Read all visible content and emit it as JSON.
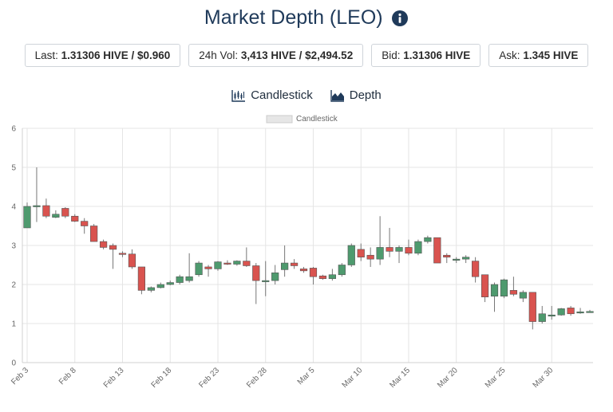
{
  "header": {
    "title": "Market Depth (LEO)",
    "info_icon": "info-circle-icon"
  },
  "stats": [
    {
      "label": "Last:",
      "value": "1.31306 HIVE / $0.960"
    },
    {
      "label": "24h Vol:",
      "value": "3,413 HIVE / $2,494.52"
    },
    {
      "label": "Bid:",
      "value": "1.31306 HIVE"
    },
    {
      "label": "Ask:",
      "value": "1.345 HIVE"
    }
  ],
  "tabs": [
    {
      "label": "Candlestick",
      "icon": "candlestick-chart-icon"
    },
    {
      "label": "Depth",
      "icon": "area-chart-icon"
    }
  ],
  "colors": {
    "up": "#4e9a6e",
    "down": "#d9534f",
    "accent": "#1f3a5a"
  },
  "chart_data": {
    "type": "candlestick",
    "legend": [
      "Candlestick"
    ],
    "legend_position": "top-center",
    "ylim": [
      0,
      6
    ],
    "y_ticks": [
      0,
      1,
      2,
      3,
      4,
      5,
      6
    ],
    "x_ticks": [
      "Feb 3",
      "Feb 8",
      "Feb 13",
      "Feb 18",
      "Feb 23",
      "Feb 28",
      "Mar 5",
      "Mar 10",
      "Mar 15",
      "Mar 20",
      "Mar 25",
      "Mar 30"
    ],
    "grid": true,
    "candles": [
      {
        "date": "Feb 3",
        "open": 3.45,
        "close": 4.0,
        "high": 4.1,
        "low": 3.45
      },
      {
        "date": "Feb 4",
        "open": 4.0,
        "close": 4.02,
        "high": 5.0,
        "low": 3.6
      },
      {
        "date": "Feb 5",
        "open": 4.02,
        "close": 3.75,
        "high": 4.2,
        "low": 3.7
      },
      {
        "date": "Feb 6",
        "open": 3.72,
        "close": 3.8,
        "high": 3.9,
        "low": 3.7
      },
      {
        "date": "Feb 7",
        "open": 3.95,
        "close": 3.75,
        "high": 3.98,
        "low": 3.7
      },
      {
        "date": "Feb 8",
        "open": 3.75,
        "close": 3.62,
        "high": 3.8,
        "low": 3.6
      },
      {
        "date": "Feb 9",
        "open": 3.62,
        "close": 3.5,
        "high": 3.7,
        "low": 3.3
      },
      {
        "date": "Feb 10",
        "open": 3.5,
        "close": 3.1,
        "high": 3.55,
        "low": 3.1
      },
      {
        "date": "Feb 11",
        "open": 3.1,
        "close": 2.95,
        "high": 3.15,
        "low": 2.9
      },
      {
        "date": "Feb 12",
        "open": 3.0,
        "close": 2.9,
        "high": 3.05,
        "low": 2.4
      },
      {
        "date": "Feb 13",
        "open": 2.8,
        "close": 2.78,
        "high": 2.85,
        "low": 2.7
      },
      {
        "date": "Feb 14",
        "open": 2.78,
        "close": 2.45,
        "high": 2.9,
        "low": 2.4
      },
      {
        "date": "Feb 15",
        "open": 2.45,
        "close": 1.85,
        "high": 2.45,
        "low": 1.75
      },
      {
        "date": "Feb 16",
        "open": 1.85,
        "close": 1.92,
        "high": 1.95,
        "low": 1.8
      },
      {
        "date": "Feb 17",
        "open": 1.92,
        "close": 2.0,
        "high": 2.05,
        "low": 1.9
      },
      {
        "date": "Feb 18",
        "open": 2.0,
        "close": 2.05,
        "high": 2.1,
        "low": 1.98
      },
      {
        "date": "Feb 19",
        "open": 2.05,
        "close": 2.2,
        "high": 2.25,
        "low": 2.0
      },
      {
        "date": "Feb 20",
        "open": 2.1,
        "close": 2.2,
        "high": 2.8,
        "low": 2.05
      },
      {
        "date": "Feb 21",
        "open": 2.25,
        "close": 2.55,
        "high": 2.6,
        "low": 2.2
      },
      {
        "date": "Feb 22",
        "open": 2.45,
        "close": 2.4,
        "high": 2.5,
        "low": 2.2
      },
      {
        "date": "Feb 23",
        "open": 2.4,
        "close": 2.58,
        "high": 2.6,
        "low": 2.35
      },
      {
        "date": "Feb 24",
        "open": 2.55,
        "close": 2.52,
        "high": 2.62,
        "low": 2.5
      },
      {
        "date": "Feb 25",
        "open": 2.52,
        "close": 2.6,
        "high": 2.62,
        "low": 2.48
      },
      {
        "date": "Feb 26",
        "open": 2.6,
        "close": 2.48,
        "high": 2.95,
        "low": 2.45
      },
      {
        "date": "Feb 27",
        "open": 2.48,
        "close": 2.1,
        "high": 2.55,
        "low": 1.5
      },
      {
        "date": "Feb 28",
        "open": 2.1,
        "close": 2.1,
        "high": 2.6,
        "low": 1.7
      },
      {
        "date": "Mar 1",
        "open": 2.1,
        "close": 2.3,
        "high": 2.5,
        "low": 2.0
      },
      {
        "date": "Mar 2",
        "open": 2.38,
        "close": 2.55,
        "high": 3.0,
        "low": 2.2
      },
      {
        "date": "Mar 3",
        "open": 2.55,
        "close": 2.48,
        "high": 2.65,
        "low": 2.4
      },
      {
        "date": "Mar 4",
        "open": 2.4,
        "close": 2.35,
        "high": 2.45,
        "low": 2.3
      },
      {
        "date": "Mar 5",
        "open": 2.42,
        "close": 2.2,
        "high": 2.45,
        "low": 2.0
      },
      {
        "date": "Mar 6",
        "open": 2.22,
        "close": 2.15,
        "high": 2.25,
        "low": 2.12
      },
      {
        "date": "Mar 7",
        "open": 2.15,
        "close": 2.25,
        "high": 2.4,
        "low": 2.1
      },
      {
        "date": "Mar 8",
        "open": 2.25,
        "close": 2.5,
        "high": 2.55,
        "low": 2.2
      },
      {
        "date": "Mar 9",
        "open": 2.5,
        "close": 3.0,
        "high": 3.05,
        "low": 2.45
      },
      {
        "date": "Mar 10",
        "open": 2.9,
        "close": 2.7,
        "high": 3.05,
        "low": 2.6
      },
      {
        "date": "Mar 11",
        "open": 2.75,
        "close": 2.65,
        "high": 2.95,
        "low": 2.45
      },
      {
        "date": "Mar 12",
        "open": 2.65,
        "close": 2.95,
        "high": 3.75,
        "low": 2.5
      },
      {
        "date": "Mar 13",
        "open": 2.95,
        "close": 2.85,
        "high": 3.45,
        "low": 2.7
      },
      {
        "date": "Mar 14",
        "open": 2.85,
        "close": 2.95,
        "high": 3.0,
        "low": 2.55
      },
      {
        "date": "Mar 15",
        "open": 2.95,
        "close": 2.8,
        "high": 3.15,
        "low": 2.75
      },
      {
        "date": "Mar 16",
        "open": 2.8,
        "close": 3.1,
        "high": 3.15,
        "low": 2.75
      },
      {
        "date": "Mar 17",
        "open": 3.1,
        "close": 3.2,
        "high": 3.25,
        "low": 3.05
      },
      {
        "date": "Mar 18",
        "open": 3.2,
        "close": 2.55,
        "high": 3.2,
        "low": 2.55
      },
      {
        "date": "Mar 19",
        "open": 2.75,
        "close": 2.7,
        "high": 2.8,
        "low": 2.55
      },
      {
        "date": "Mar 20",
        "open": 2.62,
        "close": 2.65,
        "high": 2.7,
        "low": 2.55
      },
      {
        "date": "Mar 21",
        "open": 2.65,
        "close": 2.7,
        "high": 2.75,
        "low": 2.55
      },
      {
        "date": "Mar 22",
        "open": 2.6,
        "close": 2.2,
        "high": 2.7,
        "low": 2.05
      },
      {
        "date": "Mar 23",
        "open": 2.25,
        "close": 1.68,
        "high": 2.25,
        "low": 1.55
      },
      {
        "date": "Mar 24",
        "open": 1.7,
        "close": 2.0,
        "high": 2.05,
        "low": 1.3
      },
      {
        "date": "Mar 25",
        "open": 1.7,
        "close": 2.12,
        "high": 2.15,
        "low": 1.65
      },
      {
        "date": "Mar 26",
        "open": 1.85,
        "close": 1.75,
        "high": 2.2,
        "low": 1.7
      },
      {
        "date": "Mar 27",
        "open": 1.65,
        "close": 1.8,
        "high": 1.85,
        "low": 1.55
      },
      {
        "date": "Mar 28",
        "open": 1.8,
        "close": 1.05,
        "high": 1.8,
        "low": 0.85
      },
      {
        "date": "Mar 29",
        "open": 1.05,
        "close": 1.25,
        "high": 1.45,
        "low": 1.0
      },
      {
        "date": "Mar 30",
        "open": 1.2,
        "close": 1.22,
        "high": 1.45,
        "low": 1.1
      },
      {
        "date": "Mar 31",
        "open": 1.22,
        "close": 1.38,
        "high": 1.4,
        "low": 1.2
      },
      {
        "date": "Apr 1",
        "open": 1.4,
        "close": 1.25,
        "high": 1.45,
        "low": 1.2
      },
      {
        "date": "Apr 2",
        "open": 1.28,
        "close": 1.3,
        "high": 1.4,
        "low": 1.25
      },
      {
        "date": "Apr 3",
        "open": 1.3,
        "close": 1.31,
        "high": 1.35,
        "low": 1.28
      }
    ]
  }
}
